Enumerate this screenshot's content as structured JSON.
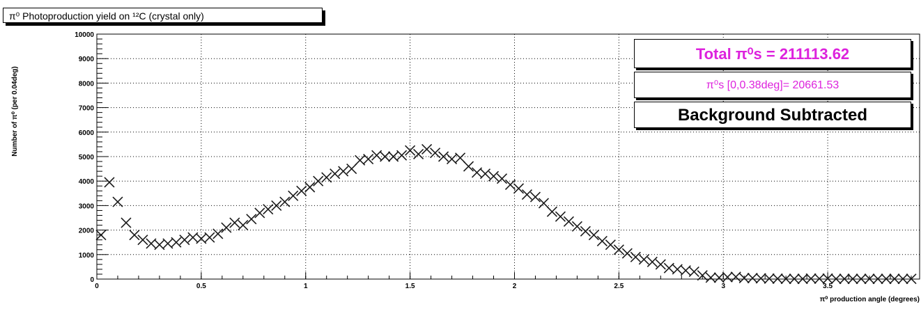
{
  "chart_data": {
    "type": "scatter",
    "title": "π⁰ Photoproduction yield on ¹²C (crystal only)",
    "xlabel": "π⁰ production angle (degrees)",
    "ylabel": "Number of π⁰ (per 0.04deg)",
    "xlim": [
      0,
      3.94
    ],
    "ylim": [
      0,
      10000
    ],
    "x_ticks": [
      "0",
      "0.5",
      "1",
      "1.5",
      "2",
      "2.5",
      "3",
      "3.5"
    ],
    "y_ticks": [
      "0",
      "1000",
      "2000",
      "3000",
      "4000",
      "5000",
      "6000",
      "7000",
      "8000",
      "9000",
      "10000"
    ],
    "grid": true,
    "marker": "x",
    "series": [
      {
        "x": [
          0.02,
          0.06,
          0.1,
          0.14,
          0.18,
          0.22,
          0.26,
          0.3,
          0.34,
          0.38,
          0.42,
          0.46,
          0.5,
          0.54,
          0.58,
          0.62,
          0.66,
          0.7,
          0.74,
          0.78,
          0.82,
          0.86,
          0.9,
          0.94,
          0.98,
          1.02,
          1.06,
          1.1,
          1.14,
          1.18,
          1.22,
          1.26,
          1.3,
          1.34,
          1.38,
          1.42,
          1.46,
          1.5,
          1.54,
          1.58,
          1.62,
          1.66,
          1.7,
          1.74,
          1.78,
          1.82,
          1.86,
          1.9,
          1.94,
          1.98,
          2.02,
          2.06,
          2.1,
          2.14,
          2.18,
          2.22,
          2.26,
          2.3,
          2.34,
          2.38,
          2.42,
          2.46,
          2.5,
          2.54,
          2.58,
          2.62,
          2.66,
          2.7,
          2.74,
          2.78,
          2.82,
          2.86,
          2.9,
          2.94,
          2.98,
          3.02,
          3.06,
          3.1,
          3.14,
          3.18,
          3.22,
          3.26,
          3.3,
          3.34,
          3.38,
          3.42,
          3.46,
          3.5,
          3.54,
          3.58,
          3.62,
          3.66,
          3.7,
          3.74,
          3.78,
          3.82,
          3.86,
          3.9
        ],
        "y": [
          1800,
          3950,
          3150,
          2300,
          1800,
          1600,
          1450,
          1400,
          1450,
          1500,
          1600,
          1700,
          1650,
          1700,
          1850,
          2100,
          2300,
          2200,
          2450,
          2700,
          2850,
          3000,
          3150,
          3400,
          3600,
          3750,
          4000,
          4150,
          4300,
          4400,
          4500,
          4850,
          4900,
          5050,
          5000,
          5000,
          5050,
          5250,
          5100,
          5300,
          5150,
          5000,
          4900,
          4950,
          4600,
          4350,
          4300,
          4200,
          4100,
          3850,
          3700,
          3450,
          3350,
          3100,
          2750,
          2550,
          2350,
          2150,
          1950,
          1800,
          1550,
          1400,
          1200,
          1050,
          900,
          800,
          700,
          600,
          450,
          400,
          350,
          300,
          150,
          60,
          60,
          80,
          90,
          40,
          40,
          30,
          20,
          15,
          10,
          10,
          10,
          20,
          15,
          20,
          10,
          10,
          10,
          10,
          10,
          10,
          10,
          10,
          10,
          10
        ]
      }
    ],
    "annotations": {
      "total": "Total π⁰s = 211113.62",
      "range": "π⁰s [0,0.38deg]= 20661.53",
      "note": "Background Subtracted"
    }
  }
}
